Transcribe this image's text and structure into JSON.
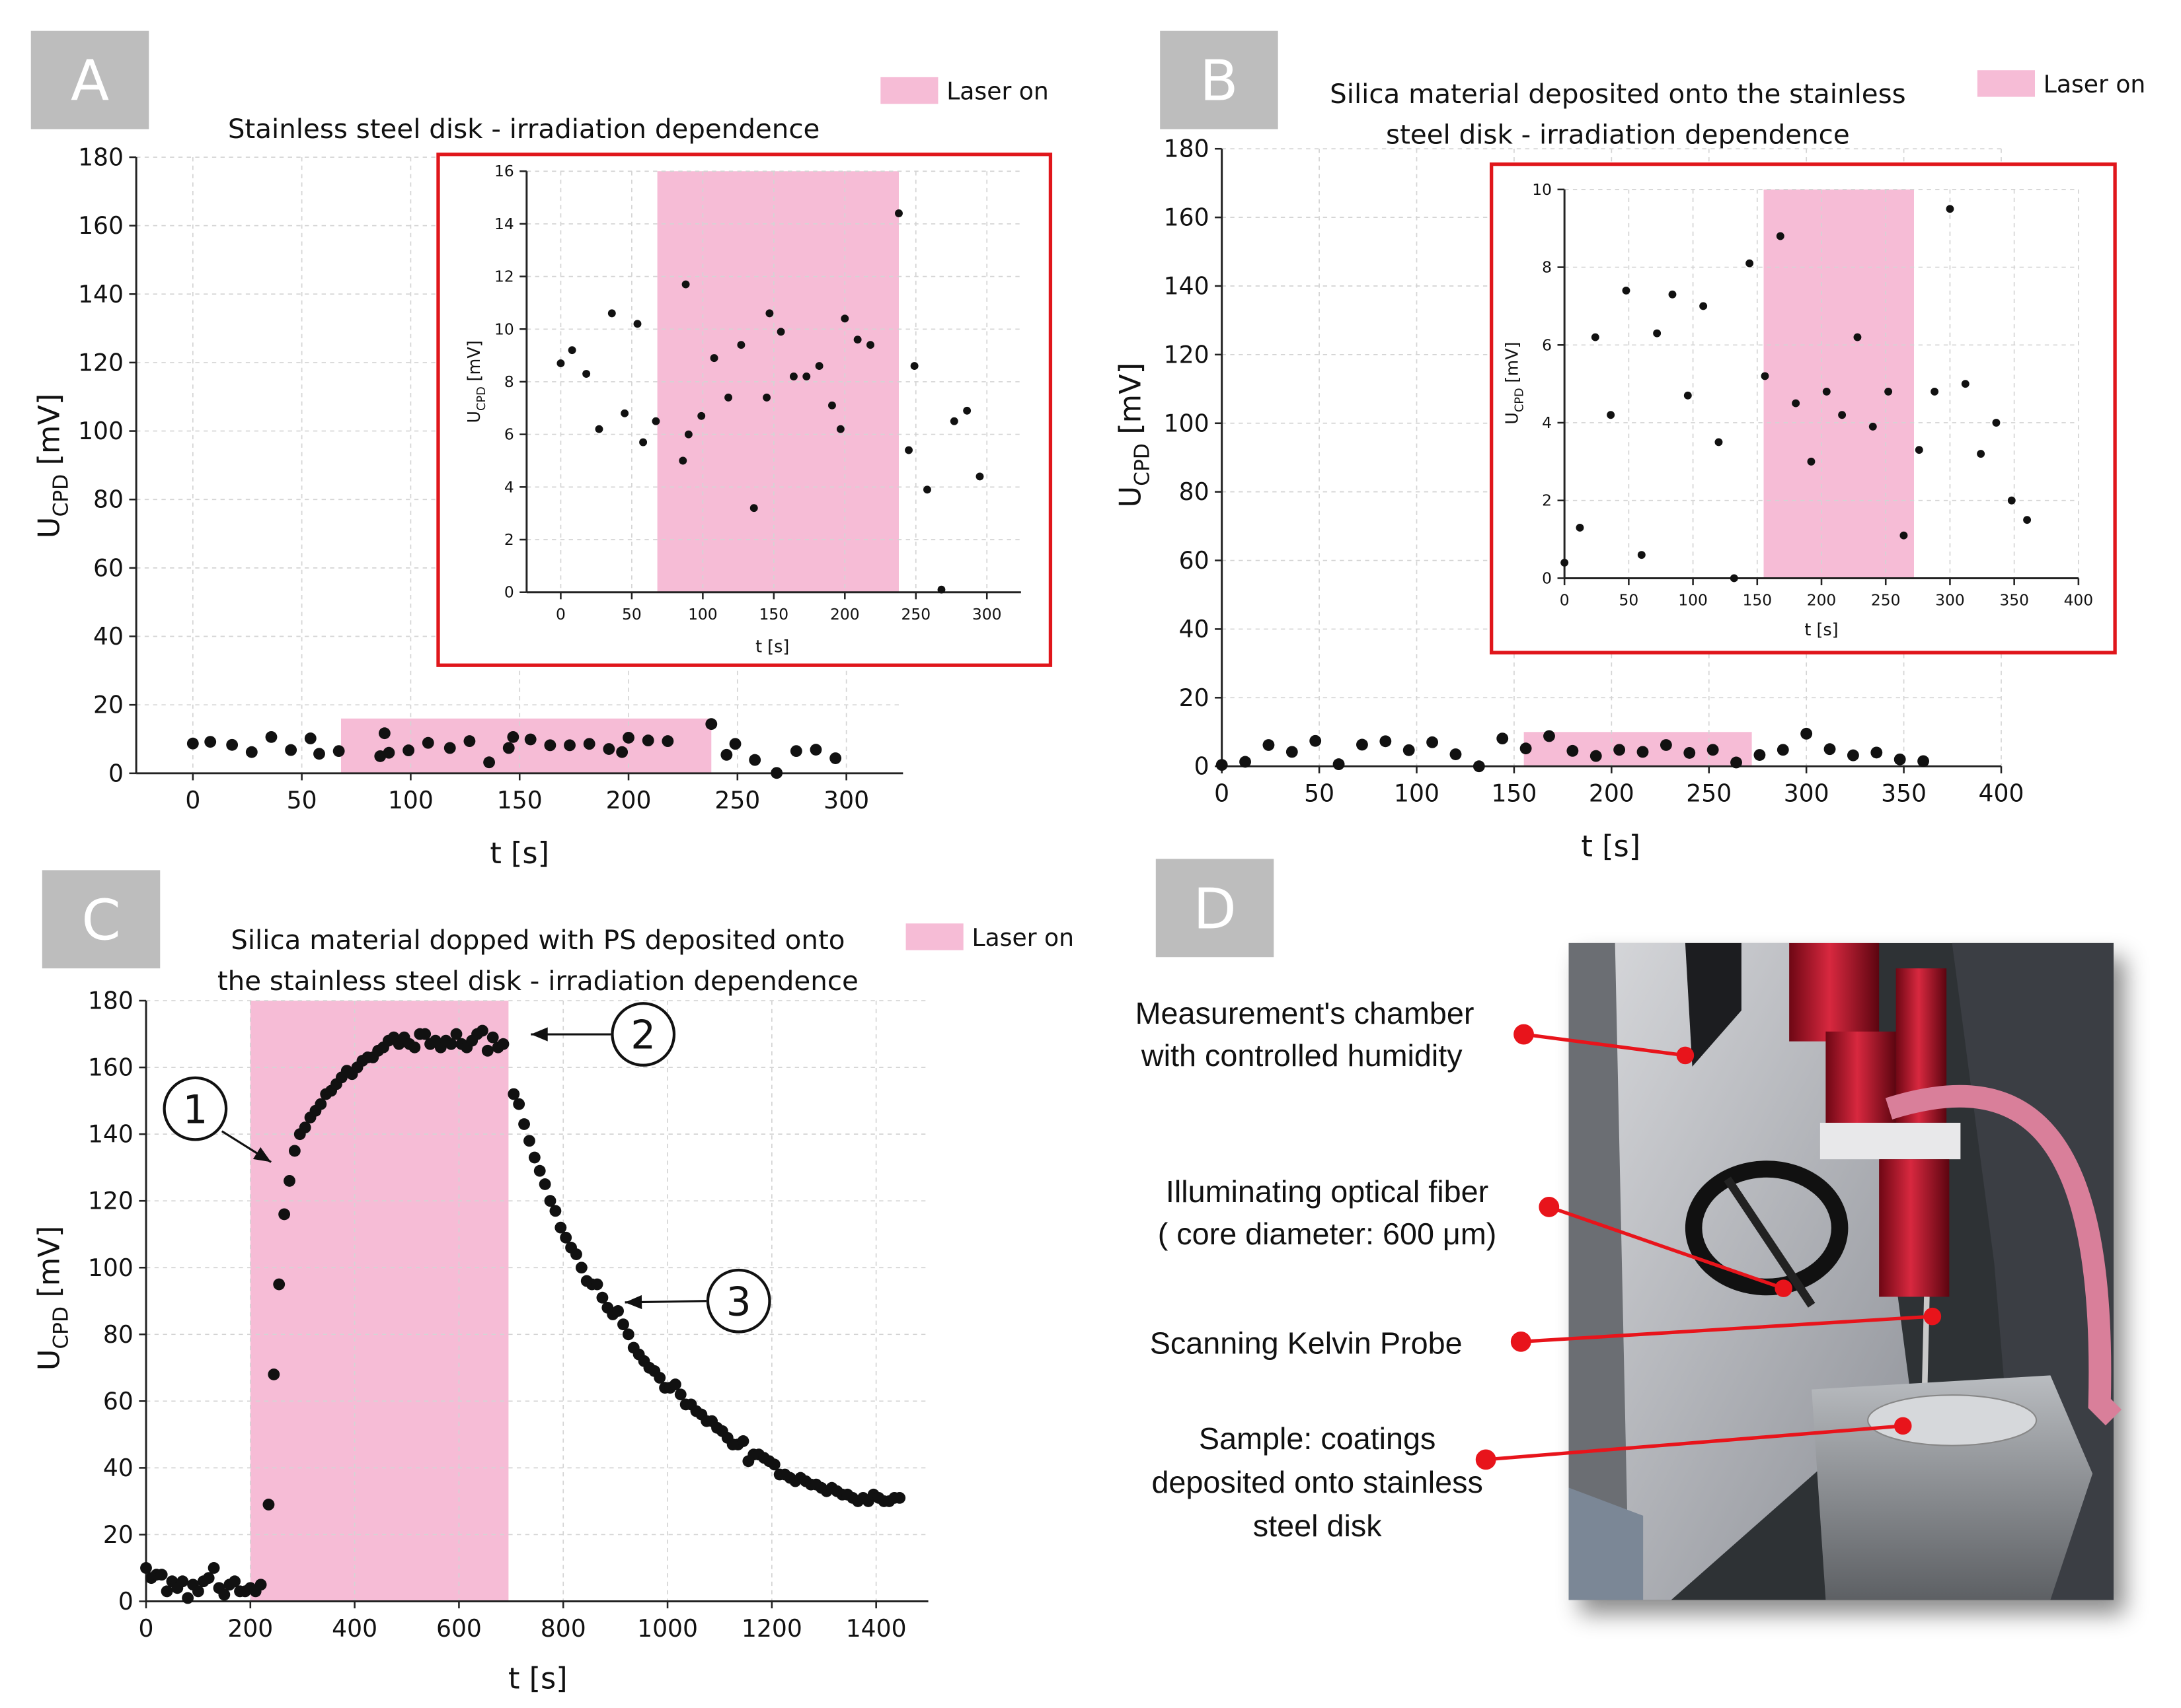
{
  "chart_data": [
    {
      "type": "scatter",
      "panel": "A",
      "title": [
        "Stainless steel disk - irradiation dependence"
      ],
      "legend": "Laser on",
      "xlabel": "t [s]",
      "ylabel": {
        "symbol": "U",
        "subscript": "CPD",
        "unit": "[mV]"
      },
      "xlim": [
        -26,
        326
      ],
      "xticks": [
        0,
        50,
        100,
        150,
        200,
        250,
        300
      ],
      "ylim": [
        0,
        180
      ],
      "yticks": [
        0,
        20,
        40,
        60,
        80,
        100,
        120,
        140,
        160,
        180
      ],
      "grid": true,
      "color": "#111111",
      "laser_color": "#f6bcd6",
      "laser_on": [
        68,
        238
      ],
      "x": [
        0,
        8,
        18,
        27,
        36,
        45,
        54,
        58,
        67,
        86,
        88,
        90,
        99,
        108,
        118,
        127,
        136,
        145,
        147,
        155,
        164,
        173,
        182,
        191,
        197,
        200,
        209,
        218,
        238,
        245,
        249,
        258,
        268,
        277,
        286,
        295
      ],
      "y": [
        8.7,
        9.2,
        8.3,
        6.2,
        10.6,
        6.8,
        10.2,
        5.7,
        6.5,
        5.0,
        11.7,
        6.0,
        6.7,
        8.9,
        7.4,
        9.4,
        3.2,
        7.4,
        10.6,
        9.9,
        8.2,
        8.2,
        8.6,
        7.1,
        6.2,
        10.4,
        9.6,
        9.4,
        14.4,
        5.4,
        8.6,
        3.9,
        0.1,
        6.5,
        6.9,
        4.4
      ],
      "inset": {
        "xlabel": "t [s]",
        "ylabel": {
          "symbol": "U",
          "subscript": "CPD",
          "unit": "[mV]"
        },
        "xlim": [
          -24,
          324
        ],
        "xticks": [
          0,
          50,
          100,
          150,
          200,
          250,
          300
        ],
        "ylim": [
          0,
          16
        ],
        "yticks": [
          0,
          2,
          4,
          6,
          8,
          10,
          12,
          14,
          16
        ],
        "frame_color": "#e0161b"
      }
    },
    {
      "type": "scatter",
      "panel": "B",
      "title": [
        "Silica material deposited onto the stainless",
        "steel disk - irradiation dependence"
      ],
      "legend": "Laser on",
      "xlabel": "t [s]",
      "ylabel": {
        "symbol": "U",
        "subscript": "CPD",
        "unit": "[mV]"
      },
      "xlim": [
        0,
        400
      ],
      "xticks": [
        0,
        50,
        100,
        150,
        200,
        250,
        300,
        350,
        400
      ],
      "ylim": [
        0,
        180
      ],
      "yticks": [
        0,
        20,
        40,
        60,
        80,
        100,
        120,
        140,
        160,
        180
      ],
      "grid": true,
      "color": "#111111",
      "laser_color": "#f6bcd6",
      "laser_on": [
        155,
        272
      ],
      "x": [
        0,
        12,
        24,
        36,
        48,
        60,
        72,
        84,
        96,
        108,
        120,
        132,
        144,
        156,
        168,
        180,
        192,
        204,
        216,
        228,
        240,
        252,
        264,
        276,
        288,
        300,
        312,
        324,
        336,
        348,
        360
      ],
      "y": [
        0.4,
        1.3,
        6.2,
        4.2,
        7.4,
        0.6,
        6.3,
        7.3,
        4.7,
        7.0,
        3.5,
        0.0,
        8.1,
        5.2,
        8.8,
        4.5,
        3.0,
        4.8,
        4.2,
        6.2,
        3.9,
        4.8,
        1.1,
        3.3,
        4.8,
        9.5,
        5.0,
        3.2,
        4.0,
        2.0,
        1.5
      ],
      "inset": {
        "xlabel": "t [s]",
        "ylabel": {
          "symbol": "U",
          "subscript": "CPD",
          "unit": "[mV]"
        },
        "xlim": [
          0,
          400
        ],
        "xticks": [
          0,
          50,
          100,
          150,
          200,
          250,
          300,
          350,
          400
        ],
        "ylim": [
          0,
          10
        ],
        "yticks": [
          0,
          2,
          4,
          6,
          8,
          10
        ],
        "frame_color": "#e0161b"
      }
    },
    {
      "type": "scatter",
      "panel": "C",
      "title": [
        "Silica material dopped with PS deposited onto",
        "the stainless steel disk - irradiation dependence"
      ],
      "legend": "Laser on",
      "xlabel": "t [s]",
      "ylabel": {
        "symbol": "U",
        "subscript": "CPD",
        "unit": "[mV]"
      },
      "xlim": [
        0,
        1500
      ],
      "xticks": [
        0,
        200,
        400,
        600,
        800,
        1000,
        1200,
        1400
      ],
      "ylim": [
        0,
        180
      ],
      "yticks": [
        0,
        20,
        40,
        60,
        80,
        100,
        120,
        140,
        160,
        180
      ],
      "grid": true,
      "color": "#111111",
      "laser_color": "#f6bcd6",
      "laser_on": [
        200,
        695
      ],
      "annotations": [
        "1",
        "2",
        "3"
      ],
      "x": [
        0,
        10,
        20,
        30,
        40,
        50,
        60,
        70,
        80,
        90,
        100,
        110,
        120,
        130,
        140,
        150,
        160,
        170,
        180,
        190,
        200,
        210,
        220,
        235,
        245,
        255,
        265,
        275,
        285,
        295,
        305,
        315,
        325,
        335,
        345,
        355,
        365,
        375,
        385,
        395,
        405,
        415,
        425,
        435,
        445,
        455,
        465,
        475,
        485,
        495,
        505,
        515,
        525,
        535,
        545,
        555,
        565,
        575,
        585,
        595,
        605,
        615,
        625,
        635,
        645,
        655,
        665,
        675,
        685,
        705,
        715,
        725,
        735,
        745,
        755,
        765,
        775,
        785,
        795,
        805,
        815,
        825,
        835,
        845,
        855,
        865,
        875,
        885,
        895,
        905,
        915,
        925,
        935,
        945,
        955,
        965,
        975,
        985,
        995,
        1005,
        1015,
        1025,
        1035,
        1045,
        1055,
        1065,
        1075,
        1085,
        1095,
        1105,
        1115,
        1125,
        1135,
        1145,
        1155,
        1165,
        1175,
        1185,
        1195,
        1205,
        1215,
        1225,
        1235,
        1245,
        1255,
        1265,
        1275,
        1285,
        1295,
        1305,
        1315,
        1325,
        1335,
        1345,
        1355,
        1365,
        1375,
        1385,
        1395,
        1405,
        1415,
        1425,
        1435,
        1445
      ],
      "y": [
        10,
        7,
        8,
        8,
        3,
        6,
        4,
        6,
        1,
        5,
        3,
        6,
        7,
        10,
        4,
        2,
        5,
        6,
        3,
        3,
        4,
        3,
        5,
        29,
        68,
        95,
        116,
        126,
        135,
        140,
        142,
        145,
        147,
        149,
        152,
        153,
        155,
        157,
        159,
        158,
        160,
        162,
        163,
        163,
        165,
        166,
        168,
        169,
        167,
        169,
        167,
        166,
        170,
        170,
        167,
        168,
        166,
        168,
        167,
        170,
        167,
        166,
        168,
        170,
        171,
        165,
        169,
        166,
        167,
        152,
        149,
        143,
        138,
        133,
        129,
        125,
        120,
        117,
        112,
        109,
        106,
        104,
        100,
        96,
        95,
        95,
        91,
        88,
        86,
        87,
        83,
        80,
        76,
        74,
        72,
        70,
        69,
        67,
        64,
        64,
        65,
        62,
        59,
        59,
        57,
        56,
        54,
        54,
        52,
        51,
        49,
        47,
        47,
        48,
        42,
        44,
        44,
        43,
        42,
        41,
        38,
        38,
        37,
        36,
        37,
        36,
        35,
        35,
        34,
        33,
        34,
        33,
        32,
        32,
        31,
        30,
        31,
        30,
        32,
        31,
        30,
        30,
        31,
        31
      ]
    }
  ],
  "photo_panel": {
    "panel": "D",
    "labels": [
      {
        "lines": [
          "Measurement's chamber",
          "with controlled humidity"
        ]
      },
      {
        "lines": [
          "Illuminating optical fiber",
          "( core diameter: 600 μm)"
        ]
      },
      {
        "lines": [
          "Scanning Kelvin Probe"
        ]
      },
      {
        "lines": [
          "Sample: coatings",
          "deposited onto stainless",
          "steel disk"
        ]
      }
    ]
  }
}
